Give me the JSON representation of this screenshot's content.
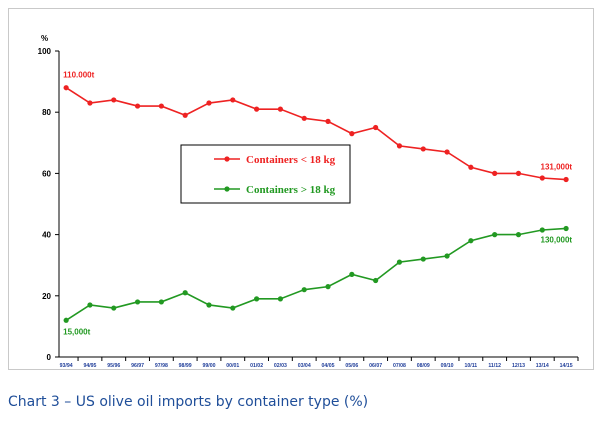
{
  "caption": "Chart 3 – US olive oil imports by container type (%)",
  "chart_data": {
    "type": "line",
    "categories": [
      "93/94",
      "94/95",
      "95/96",
      "96/97",
      "97/98",
      "98/99",
      "99/00",
      "00/01",
      "01/02",
      "02/03",
      "03/04",
      "04/05",
      "05/06",
      "06/07",
      "07/08",
      "08/09",
      "09/10",
      "10/11",
      "11/12",
      "12/13",
      "13/14",
      "14/15"
    ],
    "series": [
      {
        "name": "Containers < 18 kg",
        "color": "#ee2222",
        "values": [
          88,
          83,
          84,
          82,
          82,
          79,
          83,
          84,
          81,
          81,
          78,
          77,
          73,
          75,
          69,
          68,
          67,
          62,
          60,
          60,
          58.5,
          58
        ]
      },
      {
        "name": "Containers > 18 kg",
        "color": "#229922",
        "values": [
          12,
          17,
          16,
          18,
          18,
          21,
          17,
          16,
          19,
          19,
          22,
          23,
          27,
          25,
          31,
          32,
          33,
          38,
          40,
          40,
          41.5,
          42
        ]
      }
    ],
    "ylabel": "%",
    "ylim": [
      0,
      100
    ],
    "yticks": [
      "0",
      "20",
      "40",
      "60",
      "80",
      "100"
    ],
    "annotations": [
      {
        "text": "110.000t",
        "series": 0,
        "index": 0,
        "color": "#ee2222"
      },
      {
        "text": "131,000t",
        "series": 0,
        "index": 21,
        "color": "#ee2222"
      },
      {
        "text": "15,000t",
        "series": 1,
        "index": 0,
        "color": "#229922"
      },
      {
        "text": "130,000t",
        "series": 1,
        "index": 21,
        "color": "#229922"
      }
    ],
    "legend": "center",
    "grid": false
  }
}
